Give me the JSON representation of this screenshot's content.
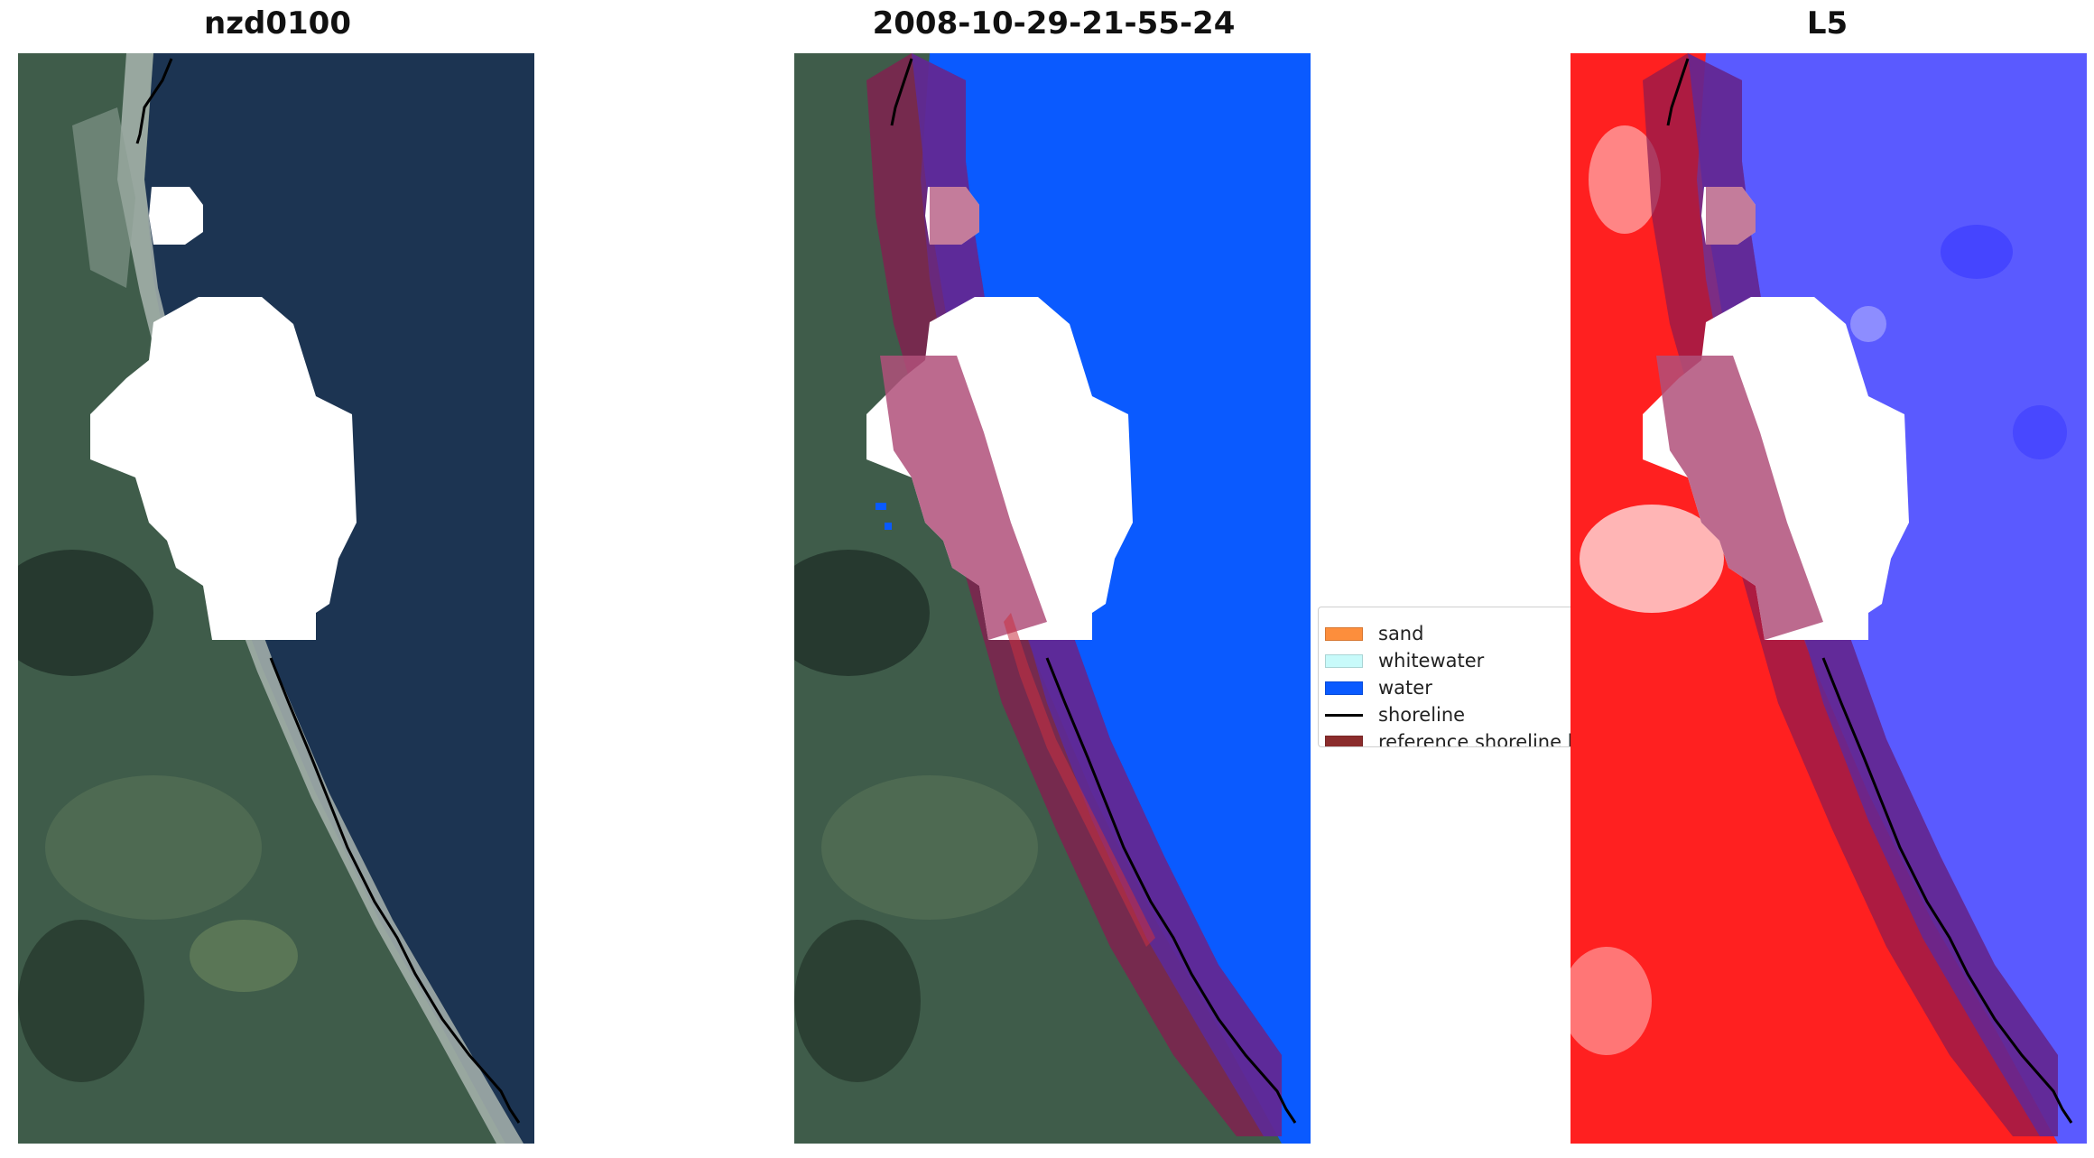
{
  "panels": [
    {
      "title": "nzd0100",
      "content": "rgb-image"
    },
    {
      "title": "2008-10-29-21-55-24",
      "content": "classified-image"
    },
    {
      "title": "L5",
      "content": "mndwi-image"
    }
  ],
  "legend": {
    "items": [
      {
        "label": "sand",
        "color": "#fd8e3c"
      },
      {
        "label": "whitewater",
        "color": "#c8fafa"
      },
      {
        "label": "water",
        "color": "#0a5aff"
      },
      {
        "label": "shoreline",
        "color": "#000000"
      },
      {
        "label": "reference shoreline buffer",
        "color": "#8b2c2c"
      }
    ]
  },
  "colors": {
    "ocean": "#1b3350",
    "land": "#3e5a4a",
    "water_class": "#0a5aff",
    "cloud": "#ffffff",
    "buffer": "rgba(128,0,60,0.55)",
    "mndwi_land": "#ff2020",
    "mndwi_water": "#5a5aff"
  }
}
